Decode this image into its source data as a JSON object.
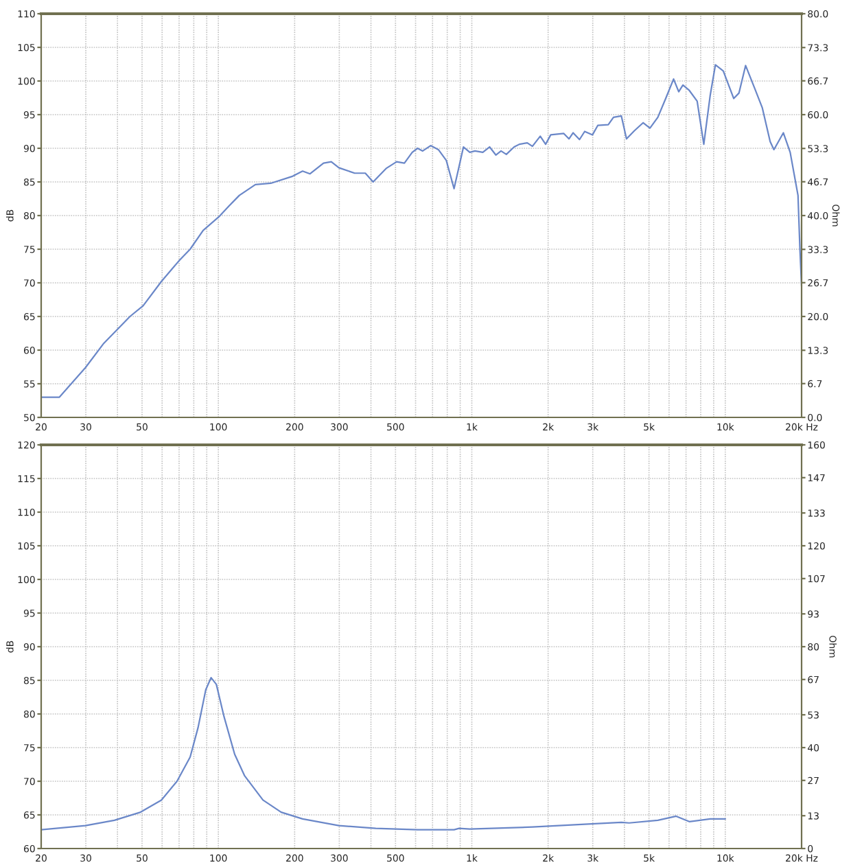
{
  "chart_data": [
    {
      "type": "line",
      "ylabel": "dB",
      "y2label": "Ohm",
      "log": "x",
      "grid": true,
      "xlim": [
        20,
        20000
      ],
      "ylim": [
        50,
        110
      ],
      "y2lim": [
        0,
        80
      ],
      "xticks": [
        20,
        30,
        {
          "value": 40,
          "label": null
        },
        50,
        {
          "value": 60,
          "label": null
        },
        {
          "value": 70,
          "label": null
        },
        {
          "value": 80,
          "label": null
        },
        {
          "value": 90,
          "label": null
        },
        100,
        200,
        300,
        {
          "value": 400,
          "label": null
        },
        500,
        {
          "value": 600,
          "label": null
        },
        {
          "value": 700,
          "label": null
        },
        {
          "value": 800,
          "label": null
        },
        {
          "value": 900,
          "label": null
        },
        {
          "value": 1000,
          "label": "1k"
        },
        {
          "value": 2000,
          "label": "2k"
        },
        {
          "value": 3000,
          "label": "3k"
        },
        {
          "value": 4000,
          "label": null
        },
        {
          "value": 5000,
          "label": "5k"
        },
        {
          "value": 6000,
          "label": null
        },
        {
          "value": 7000,
          "label": null
        },
        {
          "value": 8000,
          "label": null
        },
        {
          "value": 9000,
          "label": null
        },
        {
          "value": 10000,
          "label": "10k"
        },
        {
          "value": 20000,
          "label": "20k Hz"
        }
      ],
      "yticks": [
        50,
        55,
        60,
        65,
        70,
        75,
        80,
        85,
        90,
        95,
        100,
        105,
        110
      ],
      "y2ticks": [
        {
          "value": 0,
          "label": "0.0"
        },
        6.7,
        13.3,
        {
          "value": 20,
          "label": "20.0"
        },
        26.7,
        33.3,
        {
          "value": 40,
          "label": "40.0"
        },
        46.7,
        53.3,
        {
          "value": 60,
          "label": "60.0"
        },
        66.7,
        73.3,
        {
          "value": 80,
          "label": "80.0"
        }
      ],
      "series": [
        {
          "color": "#6a87c8",
          "x": [
            20,
            23.6,
            29.9,
            35.3,
            44.8,
            50.5,
            59.6,
            70.4,
            77.4,
            87.1,
            100.4,
            110,
            121,
            140,
            161,
            195,
            215,
            230,
            260,
            279,
            299,
            345,
            380,
            408,
            459,
            505,
            542,
            582,
            611,
            640,
            688,
            738,
            793,
            851,
            927,
            982,
            1029,
            1105,
            1175,
            1244,
            1304,
            1368,
            1469,
            1541,
            1655,
            1734,
            1862,
            1955,
            2048,
            2306,
            2417,
            2510,
            2660,
            2788,
            2993,
            3140,
            3454,
            3622,
            3890,
            4077,
            4377,
            4743,
            5045,
            5418,
            5820,
            6252,
            6551,
            6806,
            7211,
            7745,
            8227,
            8714,
            9141,
            9818,
            10794,
            11319,
            12026,
            13036,
            14000,
            15033,
            15554,
            16946,
            18030,
            19360,
            19700,
            20000
          ],
          "values": [
            53,
            53,
            57.4,
            61,
            65,
            66.6,
            70.2,
            73.4,
            75,
            77.8,
            79.8,
            81.4,
            83,
            84.6,
            84.8,
            85.8,
            86.6,
            86.2,
            87.8,
            88,
            87.1,
            86.3,
            86.3,
            85,
            87,
            88,
            87.8,
            89.4,
            90,
            89.6,
            90.4,
            89.8,
            88.2,
            84,
            90.2,
            89.4,
            89.6,
            89.4,
            90.2,
            89,
            89.6,
            89.1,
            90.2,
            90.6,
            90.8,
            90.3,
            91.8,
            90.6,
            92,
            92.2,
            91.4,
            92.3,
            91.3,
            92.5,
            92,
            93.4,
            93.5,
            94.6,
            94.8,
            91.4,
            92.6,
            93.8,
            93,
            94.6,
            97.4,
            100.3,
            98.4,
            99.4,
            98.6,
            97,
            90.6,
            97.8,
            102.4,
            101.5,
            97.4,
            98.2,
            102.3,
            99,
            96,
            91,
            89.8,
            92.3,
            89.4,
            83,
            75,
            69.5
          ]
        }
      ]
    },
    {
      "type": "line",
      "ylabel": "dB",
      "y2label": "Ohm",
      "log": "x",
      "grid": true,
      "xlim": [
        20,
        20000
      ],
      "ylim": [
        60,
        120
      ],
      "y2lim": [
        0,
        160
      ],
      "xticks": [
        20,
        30,
        {
          "value": 40,
          "label": null
        },
        50,
        {
          "value": 60,
          "label": null
        },
        {
          "value": 70,
          "label": null
        },
        {
          "value": 80,
          "label": null
        },
        {
          "value": 90,
          "label": null
        },
        100,
        200,
        300,
        {
          "value": 400,
          "label": null
        },
        500,
        {
          "value": 600,
          "label": null
        },
        {
          "value": 700,
          "label": null
        },
        {
          "value": 800,
          "label": null
        },
        {
          "value": 900,
          "label": null
        },
        {
          "value": 1000,
          "label": "1k"
        },
        {
          "value": 2000,
          "label": "2k"
        },
        {
          "value": 3000,
          "label": "3k"
        },
        {
          "value": 4000,
          "label": null
        },
        {
          "value": 5000,
          "label": "5k"
        },
        {
          "value": 6000,
          "label": null
        },
        {
          "value": 7000,
          "label": null
        },
        {
          "value": 8000,
          "label": null
        },
        {
          "value": 9000,
          "label": null
        },
        {
          "value": 10000,
          "label": "10k"
        },
        {
          "value": 20000,
          "label": "20k Hz"
        }
      ],
      "yticks": [
        60,
        65,
        70,
        75,
        80,
        85,
        90,
        95,
        100,
        105,
        110,
        115,
        120
      ],
      "y2ticks": [
        0,
        13,
        27,
        40,
        53,
        67,
        80,
        93,
        107,
        120,
        133,
        147,
        160
      ],
      "series": [
        {
          "color": "#6a87c8",
          "x": [
            20,
            29.9,
            38.9,
            49.3,
            59.6,
            68.7,
            77.4,
            83.2,
            89.2,
            93.6,
            98.2,
            105.3,
            116,
            127,
            150,
            177,
            215,
            299,
            418,
            611,
            851,
            891,
            982,
            1734,
            2788,
            3890,
            4175,
            5418,
            6400,
            7211,
            8714,
            10000
          ],
          "values": [
            62.8,
            63.4,
            64.2,
            65.4,
            67.2,
            70,
            73.6,
            78,
            83.6,
            85.4,
            84.4,
            79.6,
            74,
            70.8,
            67.2,
            65.4,
            64.4,
            63.4,
            63,
            62.8,
            62.8,
            63,
            62.9,
            63.2,
            63.6,
            63.9,
            63.8,
            64.2,
            64.8,
            64,
            64.4,
            64.4
          ]
        }
      ]
    }
  ]
}
